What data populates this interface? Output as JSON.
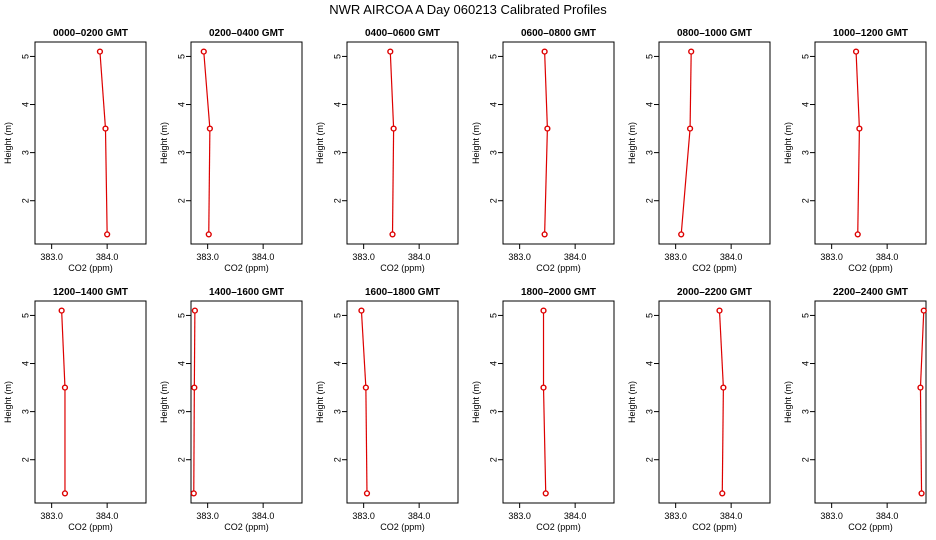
{
  "figure_title": "NWR AIRCOA A  Day 060213  Calibrated Profiles",
  "colors": {
    "series": "#dd0000",
    "axis": "#000000"
  },
  "chart_data": [
    {
      "type": "line",
      "title": "0000–0200 GMT",
      "xlabel": "CO2 (ppm)",
      "ylabel": "Height (m)",
      "xlim": [
        382.7,
        384.7
      ],
      "ylim": [
        1.1,
        5.3
      ],
      "xticks": [
        383.0,
        384.0
      ],
      "xtick_labels": [
        "383.0",
        "384.0"
      ],
      "yticks": [
        2,
        3,
        4,
        5
      ],
      "ytick_labels": [
        "2",
        "3",
        "4",
        "5"
      ],
      "points": [
        {
          "x": 383.87,
          "y": 5.1
        },
        {
          "x": 383.97,
          "y": 3.5
        },
        {
          "x": 384.0,
          "y": 1.3
        }
      ]
    },
    {
      "type": "line",
      "title": "0200–0400 GMT",
      "xlabel": "CO2 (ppm)",
      "ylabel": "Height (m)",
      "xlim": [
        382.7,
        384.7
      ],
      "ylim": [
        1.1,
        5.3
      ],
      "xticks": [
        383.0,
        384.0
      ],
      "xtick_labels": [
        "383.0",
        "384.0"
      ],
      "yticks": [
        2,
        3,
        4,
        5
      ],
      "ytick_labels": [
        "2",
        "3",
        "4",
        "5"
      ],
      "points": [
        {
          "x": 382.93,
          "y": 5.1
        },
        {
          "x": 383.04,
          "y": 3.5
        },
        {
          "x": 383.02,
          "y": 1.3
        }
      ]
    },
    {
      "type": "line",
      "title": "0400–0600 GMT",
      "xlabel": "CO2 (ppm)",
      "ylabel": "Height (m)",
      "xlim": [
        382.7,
        384.7
      ],
      "ylim": [
        1.1,
        5.3
      ],
      "xticks": [
        383.0,
        384.0
      ],
      "xtick_labels": [
        "383.0",
        "384.0"
      ],
      "yticks": [
        2,
        3,
        4,
        5
      ],
      "ytick_labels": [
        "2",
        "3",
        "4",
        "5"
      ],
      "points": [
        {
          "x": 383.48,
          "y": 5.1
        },
        {
          "x": 383.54,
          "y": 3.5
        },
        {
          "x": 383.52,
          "y": 1.3
        }
      ]
    },
    {
      "type": "line",
      "title": "0600–0800 GMT",
      "xlabel": "CO2 (ppm)",
      "ylabel": "Height (m)",
      "xlim": [
        382.7,
        384.7
      ],
      "ylim": [
        1.1,
        5.3
      ],
      "xticks": [
        383.0,
        384.0
      ],
      "xtick_labels": [
        "383.0",
        "384.0"
      ],
      "yticks": [
        2,
        3,
        4,
        5
      ],
      "ytick_labels": [
        "2",
        "3",
        "4",
        "5"
      ],
      "points": [
        {
          "x": 383.45,
          "y": 5.1
        },
        {
          "x": 383.5,
          "y": 3.5
        },
        {
          "x": 383.45,
          "y": 1.3
        }
      ]
    },
    {
      "type": "line",
      "title": "0800–1000 GMT",
      "xlabel": "CO2 (ppm)",
      "ylabel": "Height (m)",
      "xlim": [
        382.7,
        384.7
      ],
      "ylim": [
        1.1,
        5.3
      ],
      "xticks": [
        383.0,
        384.0
      ],
      "xtick_labels": [
        "383.0",
        "384.0"
      ],
      "yticks": [
        2,
        3,
        4,
        5
      ],
      "ytick_labels": [
        "2",
        "3",
        "4",
        "5"
      ],
      "points": [
        {
          "x": 383.28,
          "y": 5.1
        },
        {
          "x": 383.26,
          "y": 3.5
        },
        {
          "x": 383.1,
          "y": 1.3
        }
      ]
    },
    {
      "type": "line",
      "title": "1000–1200 GMT",
      "xlabel": "CO2 (ppm)",
      "ylabel": "Height (m)",
      "xlim": [
        382.7,
        384.7
      ],
      "ylim": [
        1.1,
        5.3
      ],
      "xticks": [
        383.0,
        384.0
      ],
      "xtick_labels": [
        "383.0",
        "384.0"
      ],
      "yticks": [
        2,
        3,
        4,
        5
      ],
      "ytick_labels": [
        "2",
        "3",
        "4",
        "5"
      ],
      "points": [
        {
          "x": 383.44,
          "y": 5.1
        },
        {
          "x": 383.5,
          "y": 3.5
        },
        {
          "x": 383.47,
          "y": 1.3
        }
      ]
    },
    {
      "type": "line",
      "title": "1200–1400 GMT",
      "xlabel": "CO2 (ppm)",
      "ylabel": "Height (m)",
      "xlim": [
        382.7,
        384.7
      ],
      "ylim": [
        1.1,
        5.3
      ],
      "xticks": [
        383.0,
        384.0
      ],
      "xtick_labels": [
        "383.0",
        "384.0"
      ],
      "yticks": [
        2,
        3,
        4,
        5
      ],
      "ytick_labels": [
        "2",
        "3",
        "4",
        "5"
      ],
      "points": [
        {
          "x": 383.18,
          "y": 5.1
        },
        {
          "x": 383.24,
          "y": 3.5
        },
        {
          "x": 383.24,
          "y": 1.3
        }
      ]
    },
    {
      "type": "line",
      "title": "1400–1600 GMT",
      "xlabel": "CO2 (ppm)",
      "ylabel": "Height (m)",
      "xlim": [
        382.7,
        384.7
      ],
      "ylim": [
        1.1,
        5.3
      ],
      "xticks": [
        383.0,
        384.0
      ],
      "xtick_labels": [
        "383.0",
        "384.0"
      ],
      "yticks": [
        2,
        3,
        4,
        5
      ],
      "ytick_labels": [
        "2",
        "3",
        "4",
        "5"
      ],
      "points": [
        {
          "x": 382.77,
          "y": 5.1
        },
        {
          "x": 382.76,
          "y": 3.5
        },
        {
          "x": 382.75,
          "y": 1.3
        }
      ]
    },
    {
      "type": "line",
      "title": "1600–1800 GMT",
      "xlabel": "CO2 (ppm)",
      "ylabel": "Height (m)",
      "xlim": [
        382.7,
        384.7
      ],
      "ylim": [
        1.1,
        5.3
      ],
      "xticks": [
        383.0,
        384.0
      ],
      "xtick_labels": [
        "383.0",
        "384.0"
      ],
      "yticks": [
        2,
        3,
        4,
        5
      ],
      "ytick_labels": [
        "2",
        "3",
        "4",
        "5"
      ],
      "points": [
        {
          "x": 382.96,
          "y": 5.1
        },
        {
          "x": 383.04,
          "y": 3.5
        },
        {
          "x": 383.06,
          "y": 1.3
        }
      ]
    },
    {
      "type": "line",
      "title": "1800–2000 GMT",
      "xlabel": "CO2 (ppm)",
      "ylabel": "Height (m)",
      "xlim": [
        382.7,
        384.7
      ],
      "ylim": [
        1.1,
        5.3
      ],
      "xticks": [
        383.0,
        384.0
      ],
      "xtick_labels": [
        "383.0",
        "384.0"
      ],
      "yticks": [
        2,
        3,
        4,
        5
      ],
      "ytick_labels": [
        "2",
        "3",
        "4",
        "5"
      ],
      "points": [
        {
          "x": 383.43,
          "y": 5.1
        },
        {
          "x": 383.43,
          "y": 3.5
        },
        {
          "x": 383.47,
          "y": 1.3
        }
      ]
    },
    {
      "type": "line",
      "title": "2000–2200 GMT",
      "xlabel": "CO2 (ppm)",
      "ylabel": "Height (m)",
      "xlim": [
        382.7,
        384.7
      ],
      "ylim": [
        1.1,
        5.3
      ],
      "xticks": [
        383.0,
        384.0
      ],
      "xtick_labels": [
        "383.0",
        "384.0"
      ],
      "yticks": [
        2,
        3,
        4,
        5
      ],
      "ytick_labels": [
        "2",
        "3",
        "4",
        "5"
      ],
      "points": [
        {
          "x": 383.79,
          "y": 5.1
        },
        {
          "x": 383.86,
          "y": 3.5
        },
        {
          "x": 383.84,
          "y": 1.3
        }
      ]
    },
    {
      "type": "line",
      "title": "2200–2400 GMT",
      "xlabel": "CO2 (ppm)",
      "ylabel": "Height (m)",
      "xlim": [
        382.7,
        384.7
      ],
      "ylim": [
        1.1,
        5.3
      ],
      "xticks": [
        383.0,
        384.0
      ],
      "xtick_labels": [
        "383.0",
        "384.0"
      ],
      "yticks": [
        2,
        3,
        4,
        5
      ],
      "ytick_labels": [
        "2",
        "3",
        "4",
        "5"
      ],
      "points": [
        {
          "x": 384.66,
          "y": 5.1
        },
        {
          "x": 384.6,
          "y": 3.5
        },
        {
          "x": 384.62,
          "y": 1.3
        }
      ]
    }
  ]
}
